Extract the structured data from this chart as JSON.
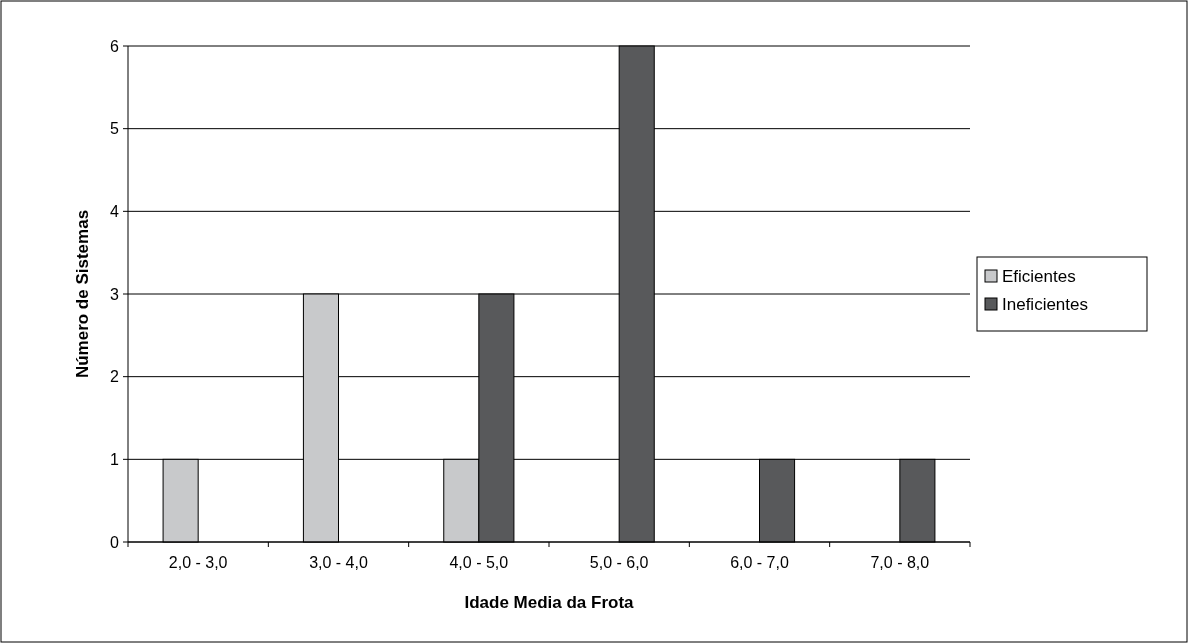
{
  "chart_data": {
    "type": "bar",
    "xlabel": "Idade Media da Frota",
    "ylabel": "Número de Sistemas",
    "categories": [
      "2,0 - 3,0",
      "3,0 - 4,0",
      "4,0 - 5,0",
      "5,0 - 6,0",
      "6,0 - 7,0",
      "7,0 - 8,0"
    ],
    "series": [
      {
        "name": "Eficientes",
        "color": "#c8c9cb",
        "values": [
          1,
          3,
          1,
          0,
          0,
          0
        ]
      },
      {
        "name": "Ineficientes",
        "color": "#58595b",
        "values": [
          0,
          0,
          3,
          6,
          1,
          1
        ]
      }
    ],
    "ylim": [
      0,
      6
    ],
    "yticks": [
      0,
      1,
      2,
      3,
      4,
      5,
      6
    ],
    "grid": "y",
    "legend": "right"
  }
}
